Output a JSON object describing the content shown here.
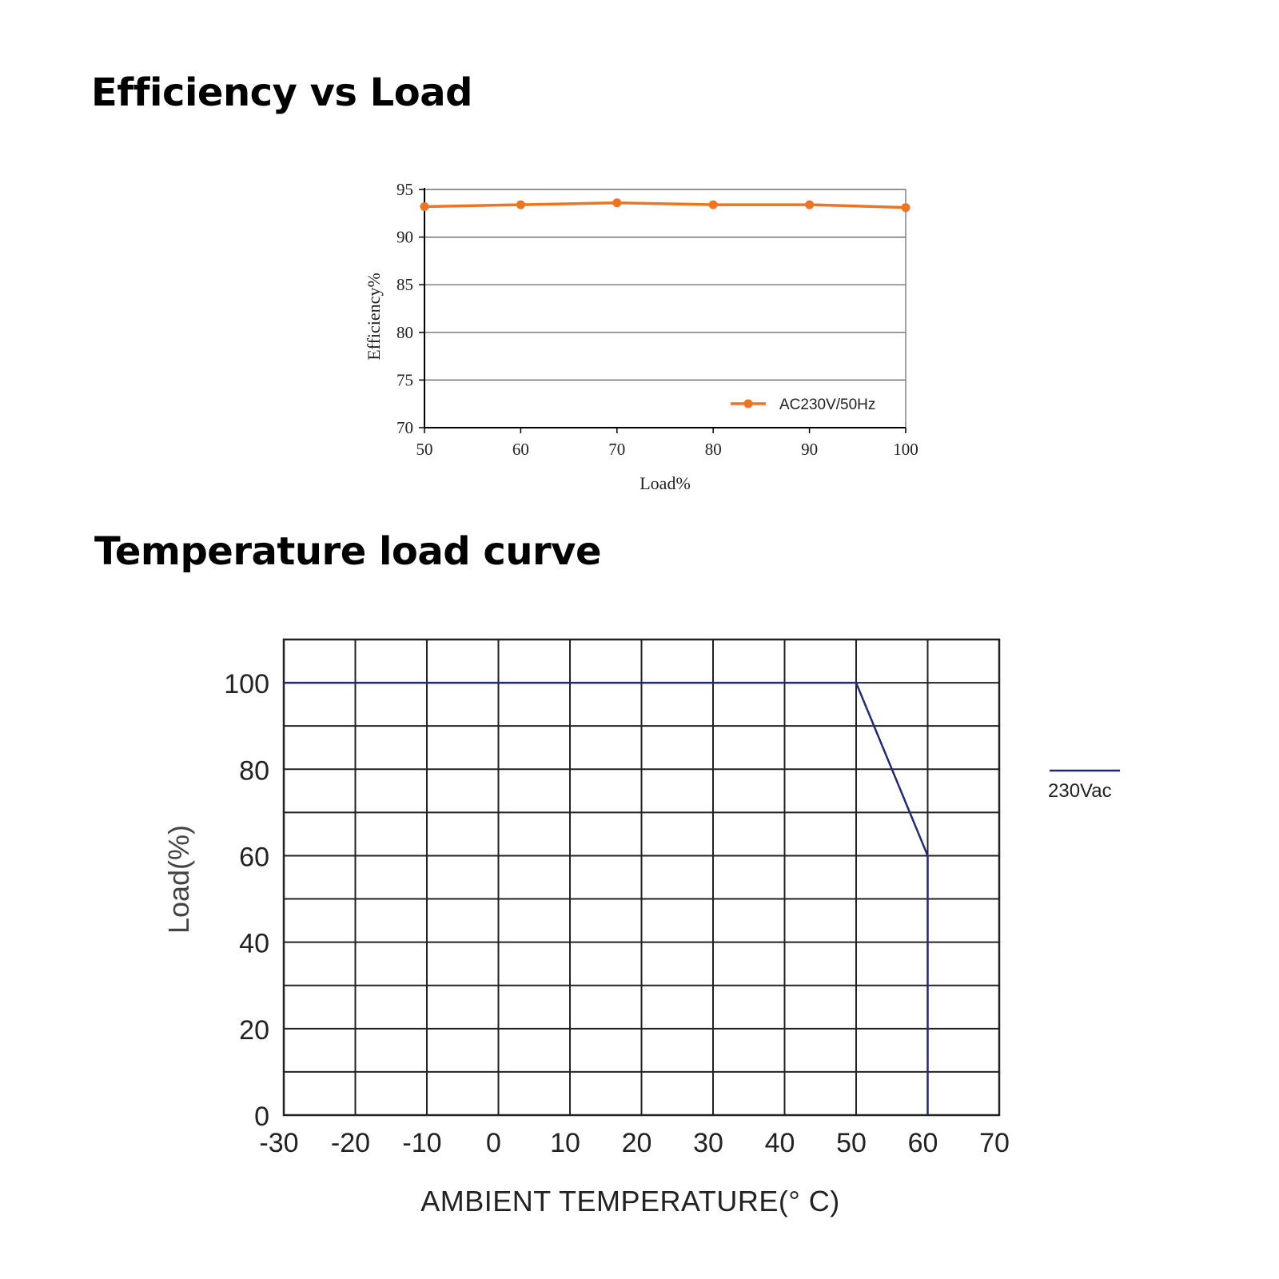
{
  "headings": {
    "efficiency": "Efficiency vs Load",
    "temperature": "Temperature load curve"
  },
  "chart_data": [
    {
      "type": "line",
      "title": "Efficiency vs Load",
      "xlabel": "Load%",
      "ylabel": "Efficiency%",
      "xlim": [
        50,
        100
      ],
      "ylim": [
        70,
        95
      ],
      "x_ticks": [
        "50",
        "60",
        "70",
        "80",
        "90",
        "100"
      ],
      "y_ticks": [
        "70",
        "75",
        "80",
        "85",
        "90",
        "95"
      ],
      "grid": true,
      "legend_position": "bottom-right",
      "series": [
        {
          "name": "AC230V/50Hz",
          "color": "#f07320",
          "x": [
            50,
            60,
            70,
            80,
            90,
            100
          ],
          "y": [
            93.2,
            93.4,
            93.6,
            93.4,
            93.4,
            93.1
          ]
        }
      ]
    },
    {
      "type": "line",
      "title": "Temperature load curve",
      "xlabel": "AMBIENT TEMPERATURE(° C)",
      "ylabel": "Load(%)",
      "xlim": [
        -30,
        70
      ],
      "ylim": [
        0,
        110
      ],
      "x_ticks": [
        "-30",
        "-20",
        "-10",
        "0",
        "10",
        "20",
        "30",
        "40",
        "50",
        "60",
        "70"
      ],
      "y_ticks": [
        "0",
        "20",
        "40",
        "60",
        "80",
        "100"
      ],
      "grid": true,
      "legend_position": "right",
      "series": [
        {
          "name": "230Vac",
          "color": "#1f2a7a",
          "x": [
            -30,
            50,
            60,
            60
          ],
          "y": [
            100,
            100,
            60,
            0
          ]
        }
      ]
    }
  ]
}
